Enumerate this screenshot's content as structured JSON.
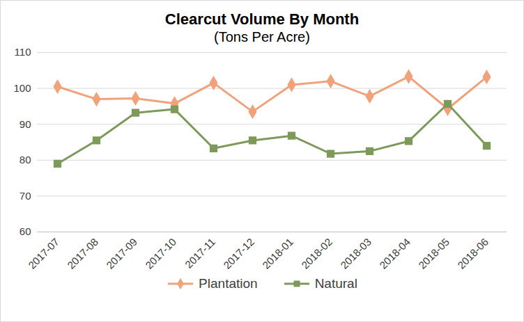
{
  "chart_data": {
    "type": "line",
    "title": "Clearcut Volume By Month",
    "subtitle": "(Tons Per Acre)",
    "categories": [
      "2017-07",
      "2017-08",
      "2017-09",
      "2017-10",
      "2017-11",
      "2017-12",
      "2018-01",
      "2018-02",
      "2018-03",
      "2018-04",
      "2018-05",
      "2018-06"
    ],
    "series": [
      {
        "name": "Plantation",
        "color": "#f2a27b",
        "marker": "diamond",
        "values": [
          100.5,
          97,
          97.2,
          95.8,
          101.5,
          93.5,
          101,
          102,
          97.8,
          103.3,
          94.3,
          103.2
        ]
      },
      {
        "name": "Natural",
        "color": "#7d9a5a",
        "marker": "square",
        "values": [
          79,
          85.5,
          93.2,
          94.2,
          83.3,
          85.5,
          86.8,
          81.8,
          82.5,
          85.3,
          95.7,
          84
        ]
      }
    ],
    "ylim": [
      60,
      110
    ],
    "yticks": [
      60,
      70,
      80,
      90,
      100,
      110
    ],
    "grid": true,
    "legend": "bottom"
  }
}
